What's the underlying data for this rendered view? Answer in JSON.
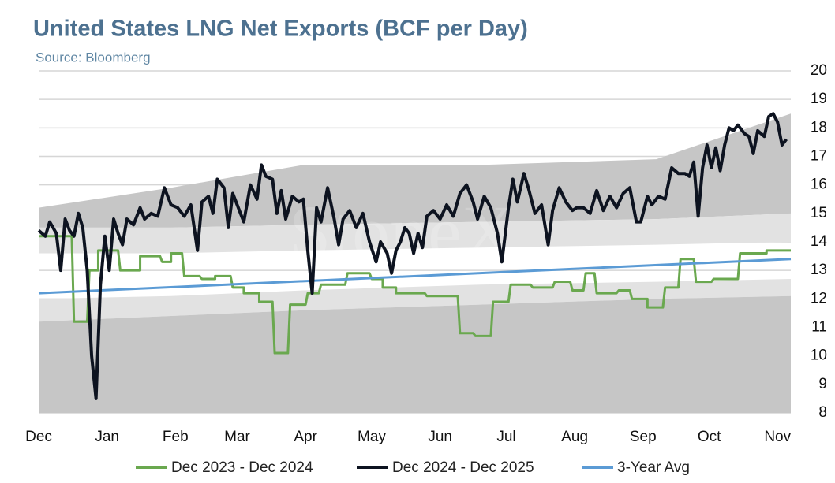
{
  "chart_data": {
    "type": "line",
    "title": "United States LNG Net Exports (BCF per Day)",
    "subtitle": "Source: Bloomberg",
    "watermark": "StoneX",
    "xlim": [
      0,
      341
    ],
    "xticks": [
      {
        "value": 0,
        "label": "Dec"
      },
      {
        "value": 31,
        "label": "Jan"
      },
      {
        "value": 62,
        "label": "Feb"
      },
      {
        "value": 90,
        "label": "Mar"
      },
      {
        "value": 121,
        "label": "Apr"
      },
      {
        "value": 151,
        "label": "May"
      },
      {
        "value": 182,
        "label": "Jun"
      },
      {
        "value": 212,
        "label": "Jul"
      },
      {
        "value": 243,
        "label": "Aug"
      },
      {
        "value": 274,
        "label": "Sep"
      },
      {
        "value": 304,
        "label": "Oct"
      },
      {
        "value": 335,
        "label": "Nov"
      }
    ],
    "ylim": [
      8,
      20
    ],
    "yticks": [
      8,
      9,
      10,
      11,
      12,
      13,
      14,
      15,
      16,
      17,
      18,
      19,
      20
    ],
    "grid": true,
    "legend": "bottom",
    "bands": [
      {
        "color": "#c6c6c6",
        "x": [
          0,
          60,
          120,
          200,
          280,
          341
        ],
        "lower": [
          14.5,
          14.5,
          14.6,
          14.7,
          14.8,
          15.0
        ],
        "upper": [
          15.2,
          15.9,
          16.7,
          16.7,
          16.9,
          18.5
        ]
      },
      {
        "color": "#e2e2e2",
        "x": [
          0,
          60,
          120,
          200,
          280,
          341
        ],
        "lower": [
          13.6,
          13.6,
          13.7,
          13.8,
          13.9,
          14.0
        ],
        "upper": [
          14.5,
          14.5,
          14.6,
          14.7,
          14.8,
          15.0
        ]
      },
      {
        "color": "#e2e2e2",
        "x": [
          0,
          60,
          120,
          200,
          280,
          341
        ],
        "lower": [
          11.2,
          11.4,
          11.6,
          11.8,
          12.0,
          12.1
        ],
        "upper": [
          12.0,
          12.1,
          12.3,
          12.5,
          12.6,
          12.7
        ]
      },
      {
        "color": "#c6c6c6",
        "x": [
          0,
          60,
          120,
          200,
          280,
          341
        ],
        "lower": [
          8,
          8,
          8,
          8,
          8,
          8
        ],
        "upper": [
          11.2,
          11.4,
          11.6,
          11.8,
          12.0,
          12.1
        ]
      }
    ],
    "series": [
      {
        "name": "Dec 2023 - Dec 2024",
        "color": "#6aa84f",
        "width": 3,
        "x": [
          0,
          15,
          16,
          22,
          23,
          27,
          27,
          36,
          37,
          46,
          46,
          55,
          56,
          60,
          60,
          65,
          66,
          73,
          74,
          80,
          80,
          87,
          88,
          93,
          93,
          100,
          100,
          106,
          107,
          113,
          114,
          121,
          122,
          127,
          128,
          139,
          140,
          150,
          151,
          156,
          156,
          162,
          162,
          175,
          176,
          190,
          191,
          197,
          198,
          205,
          206,
          213,
          214,
          223,
          224,
          233,
          234,
          241,
          242,
          247,
          248,
          252,
          253,
          262,
          263,
          268,
          269,
          276,
          276,
          283,
          284,
          290,
          291,
          297,
          298,
          305,
          306,
          317,
          318,
          330,
          330,
          341
        ],
        "values": [
          14.2,
          14.2,
          11.2,
          11.2,
          13.0,
          13.0,
          13.7,
          13.7,
          13.0,
          13.0,
          13.5,
          13.5,
          13.3,
          13.3,
          13.6,
          13.6,
          12.8,
          12.8,
          12.7,
          12.7,
          12.8,
          12.8,
          12.4,
          12.4,
          12.2,
          12.2,
          11.9,
          11.9,
          10.1,
          10.1,
          11.8,
          11.8,
          12.2,
          12.2,
          12.5,
          12.5,
          12.9,
          12.9,
          12.7,
          12.7,
          12.4,
          12.4,
          12.2,
          12.2,
          12.1,
          12.1,
          10.8,
          10.8,
          10.7,
          10.7,
          11.9,
          11.9,
          12.5,
          12.5,
          12.4,
          12.4,
          12.6,
          12.6,
          12.3,
          12.3,
          12.9,
          12.9,
          12.2,
          12.2,
          12.3,
          12.3,
          12.0,
          12.0,
          11.7,
          11.7,
          12.4,
          12.4,
          13.4,
          13.4,
          12.6,
          12.6,
          12.7,
          12.7,
          13.6,
          13.6,
          13.7,
          13.7
        ]
      },
      {
        "name": "Dec 2024 - Dec 2025",
        "color": "#0d1320",
        "width": 4,
        "x": [
          0,
          3,
          5,
          8,
          10,
          12,
          14,
          16,
          18,
          20,
          22,
          24,
          26,
          28,
          30,
          32,
          34,
          36,
          38,
          40,
          43,
          46,
          48,
          51,
          54,
          57,
          60,
          63,
          66,
          69,
          72,
          74,
          77,
          79,
          81,
          84,
          86,
          88,
          90,
          93,
          96,
          99,
          101,
          103,
          106,
          108,
          110,
          112,
          115,
          118,
          120,
          122,
          124,
          126,
          128,
          131,
          134,
          136,
          138,
          141,
          144,
          147,
          150,
          153,
          155,
          158,
          160,
          162,
          164,
          166,
          168,
          170,
          172,
          174,
          176,
          179,
          182,
          185,
          188,
          191,
          194,
          197,
          199,
          202,
          205,
          208,
          210,
          213,
          215,
          217,
          220,
          222,
          225,
          228,
          231,
          233,
          236,
          239,
          242,
          244,
          247,
          250,
          253,
          256,
          259,
          262,
          265,
          268,
          271,
          273,
          276,
          278,
          281,
          284,
          287,
          290,
          293,
          295,
          297,
          299,
          301,
          303,
          305,
          307,
          309,
          311,
          313,
          315,
          317,
          320,
          322,
          324,
          326,
          329,
          331,
          333,
          335,
          337,
          339
        ],
        "values": [
          14.4,
          14.2,
          14.7,
          14.3,
          13.0,
          14.8,
          14.4,
          14.2,
          15.0,
          14.5,
          13.0,
          10.0,
          8.5,
          12.5,
          14.2,
          13.0,
          14.8,
          14.3,
          13.9,
          14.8,
          14.6,
          15.2,
          14.8,
          15.0,
          14.9,
          15.9,
          15.3,
          15.2,
          14.9,
          15.3,
          13.7,
          15.4,
          15.6,
          15.0,
          16.2,
          15.9,
          14.5,
          15.7,
          15.3,
          14.7,
          16.0,
          15.5,
          16.7,
          16.3,
          16.2,
          15.0,
          15.8,
          14.8,
          15.6,
          15.4,
          15.5,
          13.7,
          12.2,
          15.2,
          14.7,
          15.9,
          14.8,
          13.9,
          14.8,
          15.1,
          14.5,
          15.0,
          14.0,
          13.3,
          14.0,
          13.6,
          12.9,
          13.7,
          14.0,
          14.5,
          14.3,
          13.6,
          14.3,
          13.8,
          14.9,
          15.1,
          14.8,
          15.3,
          14.9,
          15.7,
          16.0,
          15.4,
          14.8,
          15.6,
          15.2,
          14.3,
          13.3,
          15.2,
          16.2,
          15.4,
          16.4,
          15.9,
          15.0,
          15.3,
          13.9,
          15.1,
          15.9,
          15.4,
          15.1,
          15.2,
          15.2,
          15.0,
          15.8,
          15.1,
          15.6,
          15.2,
          15.7,
          15.9,
          14.7,
          14.7,
          15.6,
          15.3,
          15.6,
          15.5,
          16.6,
          16.4,
          16.4,
          16.3,
          16.8,
          14.9,
          16.6,
          17.4,
          16.6,
          17.3,
          16.5,
          17.4,
          18.0,
          17.9,
          18.1,
          17.8,
          17.7,
          17.1,
          17.9,
          17.7,
          18.4,
          18.5,
          18.2,
          17.4,
          17.6
        ]
      },
      {
        "name": "3-Year Avg",
        "color": "#5b9bd5",
        "width": 3,
        "x": [
          0,
          341
        ],
        "values": [
          12.2,
          13.4
        ]
      }
    ]
  }
}
